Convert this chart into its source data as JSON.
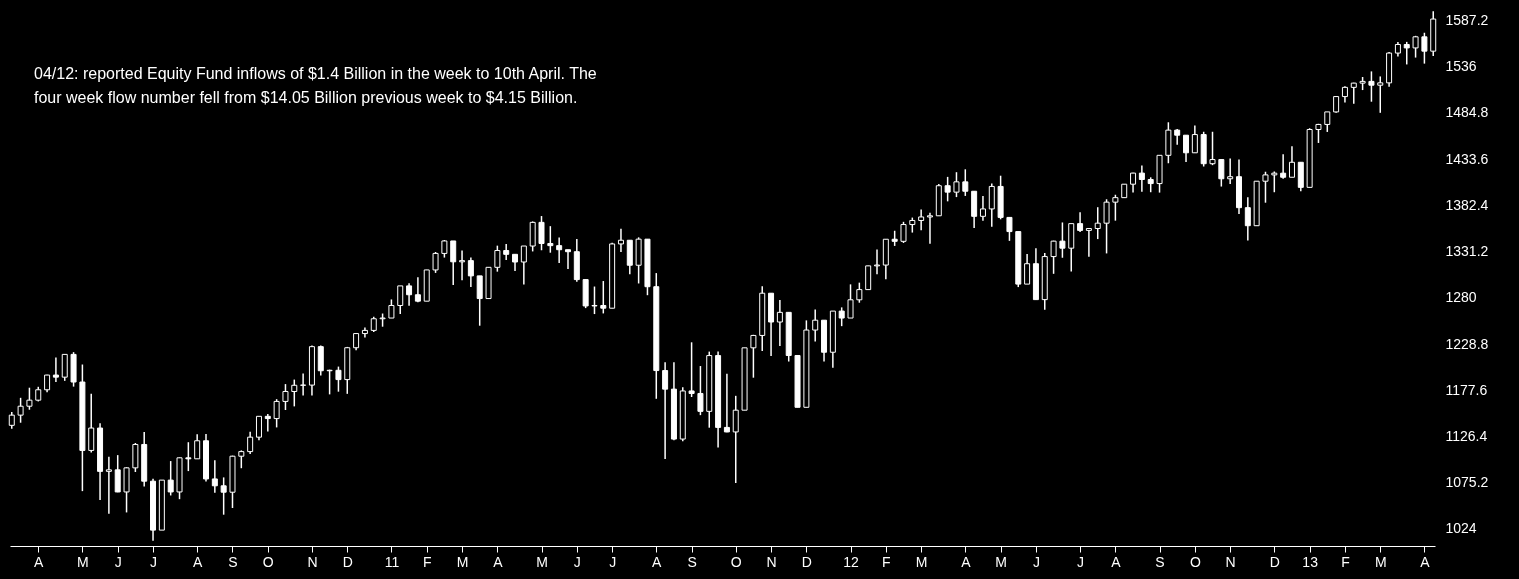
{
  "chart_data": {
    "type": "candlestick",
    "color": "#ffffff",
    "annotations": [
      "04/12: reported Equity Fund inflows of $1.4 Billion in the week to 10th April. The four week flow number fell from $14.05 Billion previous week to $4.15 Billion."
    ],
    "categories": [
      null,
      null,
      null,
      "A",
      null,
      null,
      null,
      null,
      "M",
      null,
      null,
      null,
      "J",
      null,
      null,
      null,
      "J",
      null,
      null,
      null,
      null,
      "A",
      null,
      null,
      null,
      "S",
      null,
      null,
      null,
      "O",
      null,
      null,
      null,
      null,
      "N",
      null,
      null,
      null,
      "D",
      null,
      null,
      null,
      null,
      "11",
      null,
      null,
      null,
      "F",
      null,
      null,
      null,
      "M",
      null,
      null,
      null,
      "A",
      null,
      null,
      null,
      null,
      "M",
      null,
      null,
      null,
      "J",
      null,
      null,
      null,
      "J",
      null,
      null,
      null,
      null,
      "A",
      null,
      null,
      null,
      "S",
      null,
      null,
      null,
      null,
      "O",
      null,
      null,
      null,
      "N",
      null,
      null,
      null,
      "D",
      null,
      null,
      null,
      null,
      "12",
      null,
      null,
      null,
      "F",
      null,
      null,
      null,
      "M",
      null,
      null,
      null,
      null,
      "A",
      null,
      null,
      null,
      "M",
      null,
      null,
      null,
      "J",
      null,
      null,
      null,
      null,
      "J",
      null,
      null,
      null,
      "A",
      null,
      null,
      null,
      null,
      "S",
      null,
      null,
      null,
      "O",
      null,
      null,
      null,
      "N",
      null,
      null,
      null,
      null,
      "D",
      null,
      null,
      null,
      "13",
      null,
      null,
      null,
      "F",
      null,
      null,
      null,
      "M",
      null,
      null,
      null,
      null,
      "A",
      null
    ],
    "ylim": [
      1005,
      1610
    ],
    "yticks": [
      1024,
      1075.2,
      1126.4,
      1177.6,
      1228.8,
      1280,
      1331.2,
      1382.4,
      1433.6,
      1484.8,
      1536,
      1587.2
    ],
    "ohlc": [
      [
        1138.7,
        1153.5,
        1134.9,
        1150.0
      ],
      [
        1150.0,
        1169.2,
        1141.6,
        1159.9
      ],
      [
        1159.9,
        1180.4,
        1156.0,
        1166.6
      ],
      [
        1166.6,
        1181.4,
        1165.2,
        1178.1
      ],
      [
        1178.1,
        1194.7,
        1175.3,
        1194.4
      ],
      [
        1194.4,
        1213.9,
        1186.8,
        1192.1
      ],
      [
        1192.1,
        1217.3,
        1188.0,
        1217.3
      ],
      [
        1217.3,
        1219.8,
        1181.6,
        1186.7
      ],
      [
        1186.7,
        1206.1,
        1065.8,
        1110.9
      ],
      [
        1110.9,
        1173.6,
        1108.5,
        1135.7
      ],
      [
        1135.7,
        1141.0,
        1055.9,
        1087.7
      ],
      [
        1087.7,
        1104.0,
        1040.8,
        1089.4
      ],
      [
        1089.4,
        1105.7,
        1064.6,
        1064.9
      ],
      [
        1064.9,
        1092.3,
        1042.2,
        1091.6
      ],
      [
        1091.6,
        1119.1,
        1087.0,
        1117.5
      ],
      [
        1117.5,
        1131.2,
        1071.0,
        1076.8
      ],
      [
        1076.8,
        1079.6,
        1010.9,
        1022.6
      ],
      [
        1022.6,
        1078.2,
        1022.6,
        1078.0
      ],
      [
        1078.0,
        1099.1,
        1061.0,
        1064.9
      ],
      [
        1064.9,
        1103.1,
        1056.9,
        1102.7
      ],
      [
        1102.7,
        1120.0,
        1088.0,
        1101.6
      ],
      [
        1101.6,
        1128.8,
        1101.6,
        1121.6
      ],
      [
        1121.6,
        1129.2,
        1076.6,
        1079.3
      ],
      [
        1079.3,
        1100.1,
        1063.9,
        1071.7
      ],
      [
        1071.7,
        1081.0,
        1039.7,
        1064.6
      ],
      [
        1064.6,
        1105.1,
        1047.1,
        1104.5
      ],
      [
        1104.5,
        1110.9,
        1091.2,
        1109.6
      ],
      [
        1109.6,
        1131.5,
        1107.0,
        1125.6
      ],
      [
        1125.6,
        1148.9,
        1122.3,
        1148.7
      ],
      [
        1148.7,
        1151.4,
        1131.9,
        1146.2
      ],
      [
        1146.2,
        1167.7,
        1136.4,
        1165.2
      ],
      [
        1165.2,
        1184.4,
        1155.7,
        1176.2
      ],
      [
        1176.2,
        1189.4,
        1159.7,
        1183.1
      ],
      [
        1183.1,
        1196.1,
        1171.7,
        1183.3
      ],
      [
        1183.3,
        1227.1,
        1171.9,
        1225.9
      ],
      [
        1225.9,
        1227.1,
        1194.0,
        1199.2
      ],
      [
        1199.2,
        1200.4,
        1173.0,
        1199.7
      ],
      [
        1199.7,
        1203.8,
        1176.0,
        1189.4
      ],
      [
        1189.4,
        1225.6,
        1173.6,
        1224.7
      ],
      [
        1224.7,
        1240.4,
        1222.0,
        1240.4
      ],
      [
        1240.4,
        1247.0,
        1236.0,
        1243.9
      ],
      [
        1243.9,
        1259.0,
        1242.0,
        1256.8
      ],
      [
        1256.8,
        1262.6,
        1248.0,
        1257.6
      ],
      [
        1257.6,
        1278.2,
        1257.6,
        1271.5
      ],
      [
        1271.5,
        1293.2,
        1262.0,
        1293.2
      ],
      [
        1293.2,
        1296.1,
        1271.3,
        1283.4
      ],
      [
        1283.4,
        1302.7,
        1275.0,
        1276.3
      ],
      [
        1276.3,
        1311.0,
        1276.3,
        1310.9
      ],
      [
        1310.9,
        1330.8,
        1307.6,
        1329.2
      ],
      [
        1329.2,
        1344.1,
        1324.6,
        1343.0
      ],
      [
        1343.0,
        1343.0,
        1294.3,
        1319.9
      ],
      [
        1319.9,
        1332.3,
        1299.6,
        1321.2
      ],
      [
        1321.2,
        1324.6,
        1291.9,
        1304.3
      ],
      [
        1304.3,
        1304.3,
        1249.1,
        1279.2
      ],
      [
        1279.2,
        1314.0,
        1279.2,
        1313.8
      ],
      [
        1313.8,
        1337.8,
        1309.0,
        1332.4
      ],
      [
        1332.4,
        1339.5,
        1322.0,
        1328.2
      ],
      [
        1328.2,
        1328.2,
        1309.6,
        1319.7
      ],
      [
        1319.7,
        1337.5,
        1294.7,
        1337.4
      ],
      [
        1337.4,
        1364.6,
        1331.4,
        1363.6
      ],
      [
        1363.6,
        1370.6,
        1332.7,
        1340.2
      ],
      [
        1340.2,
        1359.4,
        1330.0,
        1337.8
      ],
      [
        1337.8,
        1346.8,
        1318.5,
        1333.3
      ],
      [
        1333.3,
        1333.3,
        1311.8,
        1331.1
      ],
      [
        1331.1,
        1345.2,
        1297.9,
        1300.2
      ],
      [
        1300.2,
        1300.2,
        1268.6,
        1271.0
      ],
      [
        1271.0,
        1292.5,
        1262.0,
        1271.5
      ],
      [
        1271.5,
        1298.6,
        1262.7,
        1268.5
      ],
      [
        1268.5,
        1341.0,
        1268.5,
        1339.7
      ],
      [
        1339.7,
        1356.5,
        1330.9,
        1343.8
      ],
      [
        1343.8,
        1343.8,
        1306.0,
        1316.1
      ],
      [
        1316.1,
        1347.0,
        1295.9,
        1345.0
      ],
      [
        1345.0,
        1345.0,
        1282.9,
        1292.3
      ],
      [
        1292.3,
        1307.4,
        1168.1,
        1199.4
      ],
      [
        1199.4,
        1208.5,
        1101.5,
        1178.8
      ],
      [
        1178.8,
        1208.5,
        1122.1,
        1123.5
      ],
      [
        1123.5,
        1181.0,
        1121.1,
        1176.8
      ],
      [
        1176.8,
        1230.7,
        1170.1,
        1174.0
      ],
      [
        1174.0,
        1204.4,
        1150.0,
        1154.2
      ],
      [
        1154.2,
        1220.4,
        1136.1,
        1216.0
      ],
      [
        1216.0,
        1220.6,
        1114.2,
        1136.4
      ],
      [
        1136.4,
        1195.9,
        1131.1,
        1131.4
      ],
      [
        1131.4,
        1171.4,
        1074.8,
        1155.5
      ],
      [
        1155.5,
        1224.6,
        1155.5,
        1224.6
      ],
      [
        1224.6,
        1239.0,
        1191.5,
        1238.3
      ],
      [
        1238.3,
        1292.7,
        1221.1,
        1285.1
      ],
      [
        1285.1,
        1285.1,
        1215.4,
        1253.2
      ],
      [
        1253.2,
        1277.6,
        1226.6,
        1263.9
      ],
      [
        1263.9,
        1264.3,
        1209.4,
        1216.1
      ],
      [
        1216.1,
        1216.1,
        1158.7,
        1158.7
      ],
      [
        1158.7,
        1255.0,
        1158.7,
        1244.3
      ],
      [
        1244.3,
        1267.1,
        1231.5,
        1255.2
      ],
      [
        1255.2,
        1255.2,
        1209.5,
        1219.7
      ],
      [
        1219.7,
        1265.4,
        1202.4,
        1265.3
      ],
      [
        1265.3,
        1269.4,
        1248.6,
        1257.6
      ],
      [
        1257.6,
        1294.9,
        1257.6,
        1277.8
      ],
      [
        1277.8,
        1296.8,
        1274.6,
        1289.1
      ],
      [
        1289.1,
        1315.5,
        1289.1,
        1315.4
      ],
      [
        1315.4,
        1333.5,
        1306.1,
        1316.3
      ],
      [
        1316.3,
        1345.3,
        1300.5,
        1344.9
      ],
      [
        1344.9,
        1354.3,
        1337.5,
        1342.6
      ],
      [
        1342.6,
        1364.2,
        1340.8,
        1361.2
      ],
      [
        1361.2,
        1368.9,
        1352.3,
        1365.7
      ],
      [
        1365.7,
        1378.0,
        1354.9,
        1369.6
      ],
      [
        1369.6,
        1374.2,
        1340.0,
        1370.9
      ],
      [
        1370.9,
        1406.0,
        1370.9,
        1404.2
      ],
      [
        1404.2,
        1414.0,
        1386.9,
        1397.1
      ],
      [
        1397.1,
        1419.2,
        1391.6,
        1408.5
      ],
      [
        1408.5,
        1422.4,
        1392.9,
        1398.1
      ],
      [
        1398.1,
        1398.1,
        1357.4,
        1370.3
      ],
      [
        1370.3,
        1392.8,
        1365.4,
        1378.5
      ],
      [
        1378.5,
        1406.6,
        1358.8,
        1403.4
      ],
      [
        1403.4,
        1415.3,
        1367.0,
        1369.1
      ],
      [
        1369.1,
        1369.1,
        1343.1,
        1353.4
      ],
      [
        1353.4,
        1353.4,
        1291.9,
        1295.2
      ],
      [
        1295.2,
        1328.5,
        1295.2,
        1317.8
      ],
      [
        1317.8,
        1334.9,
        1277.8,
        1278.0
      ],
      [
        1278.0,
        1329.6,
        1266.7,
        1325.7
      ],
      [
        1325.7,
        1343.3,
        1306.6,
        1342.8
      ],
      [
        1342.8,
        1363.5,
        1324.4,
        1335.0
      ],
      [
        1335.0,
        1362.2,
        1309.3,
        1362.2
      ],
      [
        1362.2,
        1374.8,
        1352.8,
        1354.7
      ],
      [
        1354.7,
        1356.8,
        1325.4,
        1356.8
      ],
      [
        1356.8,
        1380.4,
        1345.1,
        1362.7
      ],
      [
        1362.7,
        1389.2,
        1329.2,
        1386.0
      ],
      [
        1386.0,
        1394.2,
        1365.5,
        1391.0
      ],
      [
        1391.0,
        1405.9,
        1391.0,
        1405.9
      ],
      [
        1405.9,
        1418.7,
        1396.6,
        1418.2
      ],
      [
        1418.2,
        1426.7,
        1397.4,
        1411.1
      ],
      [
        1411.1,
        1413.5,
        1397.0,
        1406.6
      ],
      [
        1406.6,
        1437.9,
        1396.6,
        1437.9
      ],
      [
        1437.9,
        1474.5,
        1429.1,
        1465.8
      ],
      [
        1465.8,
        1467.1,
        1449.6,
        1460.2
      ],
      [
        1460.2,
        1460.2,
        1430.5,
        1440.7
      ],
      [
        1440.7,
        1470.9,
        1440.7,
        1460.9
      ],
      [
        1460.9,
        1464.0,
        1425.5,
        1428.6
      ],
      [
        1428.6,
        1464.0,
        1427.0,
        1433.2
      ],
      [
        1433.2,
        1433.2,
        1403.3,
        1411.9
      ],
      [
        1411.9,
        1434.3,
        1406.0,
        1414.2
      ],
      [
        1414.2,
        1433.4,
        1373.0,
        1379.9
      ],
      [
        1379.9,
        1391.4,
        1343.4,
        1359.9
      ],
      [
        1359.9,
        1409.2,
        1359.9,
        1409.2
      ],
      [
        1409.2,
        1419.7,
        1385.4,
        1416.2
      ],
      [
        1416.2,
        1420.0,
        1397.0,
        1418.1
      ],
      [
        1418.1,
        1439.0,
        1412.0,
        1413.6
      ],
      [
        1413.6,
        1448.0,
        1413.6,
        1430.2
      ],
      [
        1430.2,
        1430.2,
        1398.1,
        1402.4
      ],
      [
        1402.4,
        1467.9,
        1402.4,
        1466.5
      ],
      [
        1466.5,
        1472.8,
        1451.6,
        1472.1
      ],
      [
        1472.1,
        1486.0,
        1463.8,
        1486.0
      ],
      [
        1486.0,
        1503.3,
        1485.0,
        1503.0
      ],
      [
        1503.0,
        1514.4,
        1496.3,
        1513.2
      ],
      [
        1513.2,
        1518.3,
        1495.0,
        1517.9
      ],
      [
        1517.9,
        1524.7,
        1510.2,
        1519.8
      ],
      [
        1519.8,
        1530.9,
        1497.3,
        1515.6
      ],
      [
        1515.6,
        1525.3,
        1485.0,
        1518.2
      ],
      [
        1518.2,
        1552.5,
        1514.0,
        1551.2
      ],
      [
        1551.2,
        1563.6,
        1547.4,
        1560.7
      ],
      [
        1560.7,
        1563.6,
        1538.6,
        1556.9
      ],
      [
        1556.9,
        1570.3,
        1546.2,
        1569.2
      ],
      [
        1569.2,
        1573.7,
        1539.5,
        1553.3
      ],
      [
        1553.3,
        1597.4,
        1548.0,
        1588.9
      ]
    ]
  }
}
